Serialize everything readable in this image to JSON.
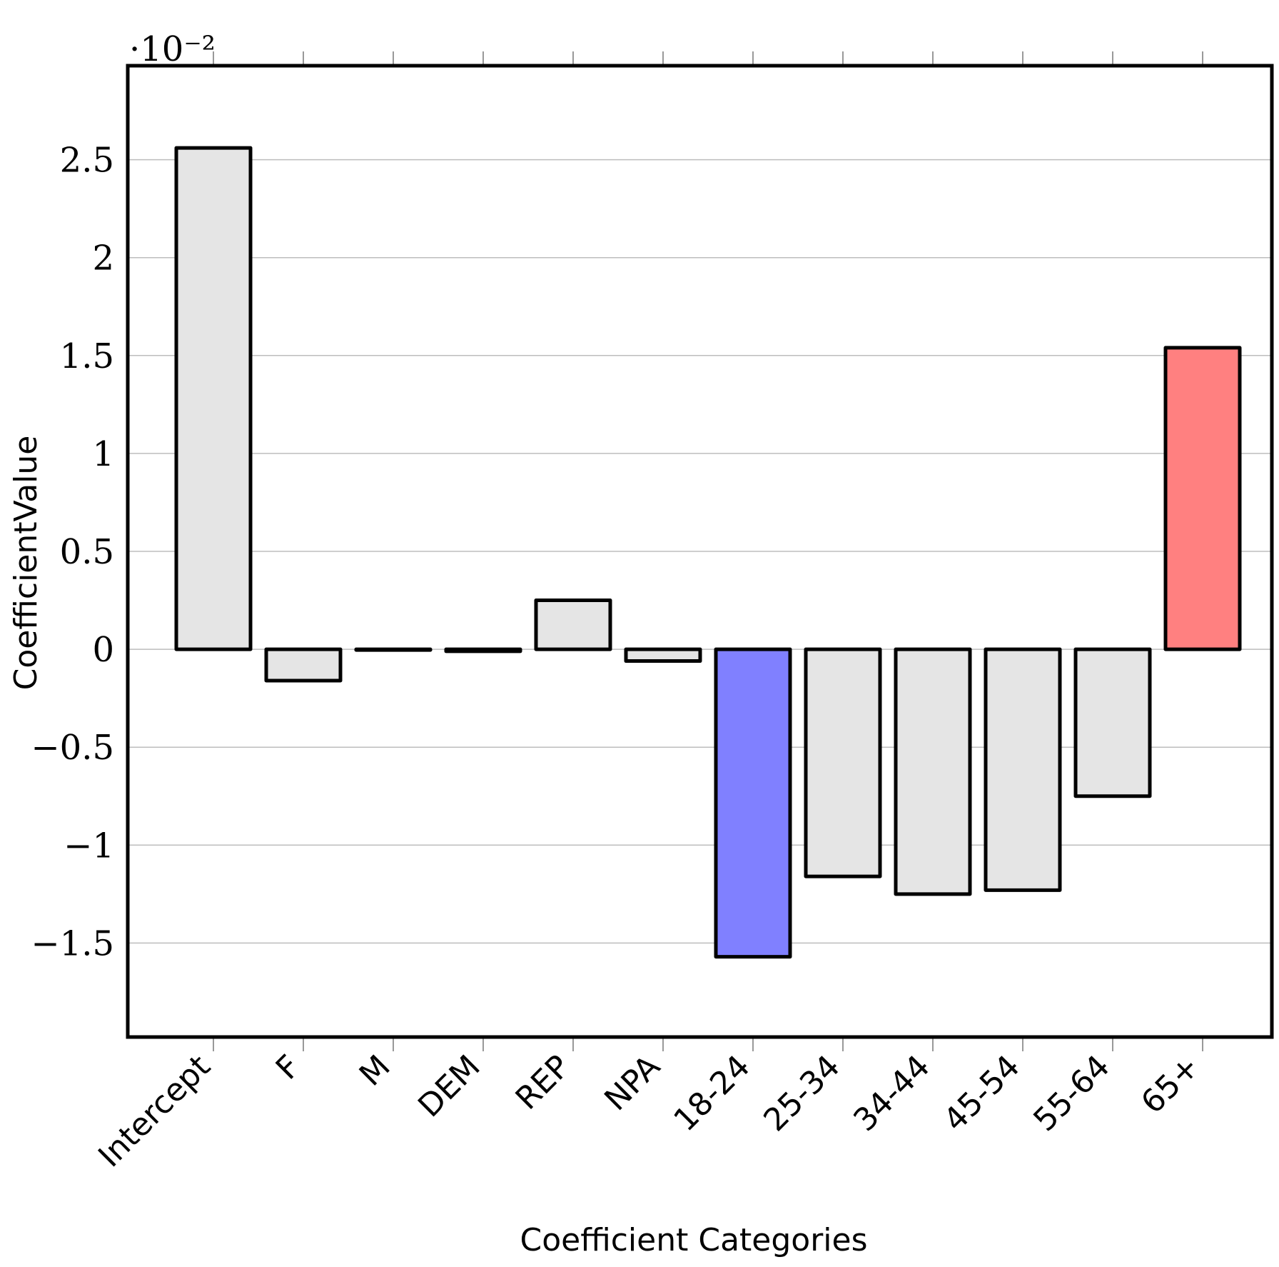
{
  "chart_data": {
    "type": "bar",
    "categories": [
      "Intercept",
      "F",
      "M",
      "DEM",
      "REP",
      "NPA",
      "18-24",
      "25-34",
      "34-44",
      "45-54",
      "55-64",
      "65+"
    ],
    "values": [
      2.56,
      -0.16,
      0.0,
      -0.01,
      0.25,
      -0.06,
      -1.57,
      -1.16,
      -1.25,
      -1.23,
      -0.75,
      1.54
    ],
    "bar_colors": [
      "#e5e5e5",
      "#e5e5e5",
      "#e5e5e5",
      "#e5e5e5",
      "#e5e5e5",
      "#e5e5e5",
      "#8080ff",
      "#e5e5e5",
      "#e5e5e5",
      "#e5e5e5",
      "#e5e5e5",
      "#ff8080"
    ],
    "scale_label": "·10⁻²",
    "xlabel": "Coefficient Categories",
    "ylabel": "CoefficientValue",
    "ylim": [
      -1.98,
      2.98
    ],
    "yticks": [
      -1.5,
      -1,
      -0.5,
      0,
      0.5,
      1,
      1.5,
      2,
      2.5
    ],
    "ytick_labels": [
      "−1.5",
      "−1",
      "−0.5",
      "0",
      "0.5",
      "1",
      "1.5",
      "2",
      "2.5"
    ],
    "grid": true,
    "grid_color": "#bdbdbd",
    "edge_color": "#000000"
  }
}
